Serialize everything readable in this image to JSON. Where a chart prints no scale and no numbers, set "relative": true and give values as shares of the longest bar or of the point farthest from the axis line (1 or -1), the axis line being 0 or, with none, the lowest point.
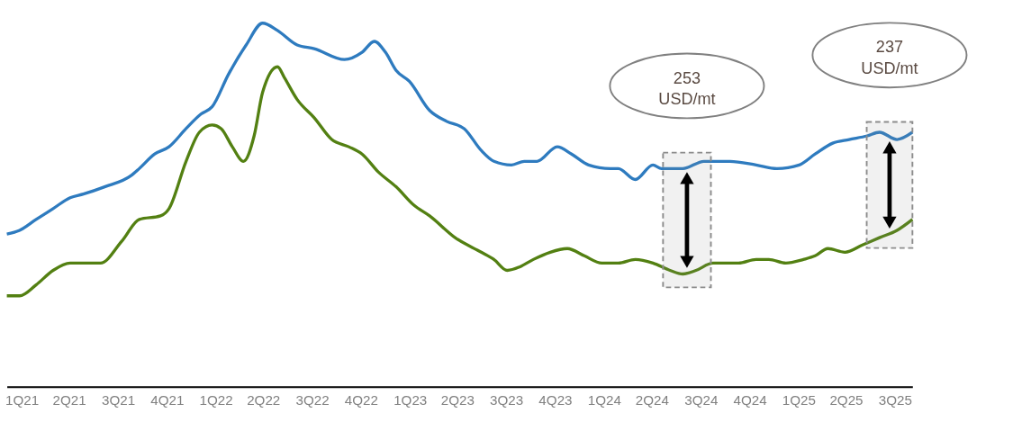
{
  "chart_data": {
    "type": "line",
    "relative": true,
    "line_style": "solid",
    "xlim": [
      "2021-01-18",
      "2025-09-17"
    ],
    "xticks": [
      {
        "value": "2021-02-15",
        "label": "1Q21"
      },
      {
        "value": "2021-05-15",
        "label": "2Q21"
      },
      {
        "value": "2021-08-15",
        "label": "3Q21"
      },
      {
        "value": "2021-11-15",
        "label": "4Q21"
      },
      {
        "value": "2022-02-15",
        "label": "1Q22"
      },
      {
        "value": "2022-05-15",
        "label": "2Q22"
      },
      {
        "value": "2022-08-15",
        "label": "3Q22"
      },
      {
        "value": "2022-11-15",
        "label": "4Q22"
      },
      {
        "value": "2023-02-15",
        "label": "1Q23"
      },
      {
        "value": "2023-05-15",
        "label": "2Q23"
      },
      {
        "value": "2023-08-15",
        "label": "3Q23"
      },
      {
        "value": "2023-11-15",
        "label": "4Q23"
      },
      {
        "value": "2024-02-15",
        "label": "1Q24"
      },
      {
        "value": "2024-05-15",
        "label": "2Q24"
      },
      {
        "value": "2024-08-15",
        "label": "3Q24"
      },
      {
        "value": "2024-11-15",
        "label": "4Q24"
      },
      {
        "value": "2025-02-15",
        "label": "1Q25"
      },
      {
        "value": "2025-05-15",
        "label": "2Q25"
      },
      {
        "value": "2025-08-15",
        "label": "3Q25"
      }
    ],
    "series": [
      {
        "color": "#2e7bbf",
        "x": [
          "2021-01-18",
          "2021-02-11",
          "2021-03-14",
          "2021-04-15",
          "2021-05-17",
          "2021-06-11",
          "2021-07-21",
          "2021-09-08",
          "2021-09-24",
          "2021-10-23",
          "2021-11-19",
          "2021-12-21",
          "2022-01-18",
          "2022-02-08",
          "2022-03-11",
          "2022-04-13",
          "2022-05-14",
          "2022-06-11",
          "2022-07-18",
          "2022-08-19",
          "2022-10-15",
          "2022-11-17",
          "2022-12-10",
          "2022-12-31",
          "2023-01-20",
          "2023-02-14",
          "2023-03-24",
          "2023-04-25",
          "2023-05-28",
          "2023-06-29",
          "2023-07-23",
          "2023-08-25",
          "2023-09-18",
          "2023-10-12",
          "2023-11-19",
          "2023-12-16",
          "2024-01-17",
          "2024-02-27",
          "2024-03-13",
          "2024-04-14",
          "2024-05-17",
          "2024-06-02",
          "2024-06-23",
          "2024-07-12",
          "2024-08-21",
          "2024-10-09",
          "2024-11-27",
          "2025-01-05",
          "2025-02-16",
          "2025-03-18",
          "2025-04-20",
          "2025-05-21",
          "2025-06-24",
          "2025-07-17",
          "2025-08-19",
          "2025-09-17"
        ],
        "values": [
          0.42,
          0.43,
          0.46,
          0.49,
          0.52,
          0.53,
          0.55,
          0.58,
          0.6,
          0.64,
          0.66,
          0.71,
          0.75,
          0.77,
          0.86,
          0.94,
          1.0,
          0.98,
          0.94,
          0.93,
          0.9,
          0.92,
          0.95,
          0.92,
          0.87,
          0.84,
          0.76,
          0.73,
          0.71,
          0.65,
          0.62,
          0.61,
          0.62,
          0.62,
          0.66,
          0.64,
          0.61,
          0.6,
          0.6,
          0.57,
          0.61,
          0.6,
          0.6,
          0.6,
          0.62,
          0.62,
          0.61,
          0.6,
          0.61,
          0.64,
          0.67,
          0.68,
          0.69,
          0.7,
          0.68,
          0.7
        ]
      },
      {
        "color": "#538012",
        "x": [
          "2021-01-18",
          "2021-02-11",
          "2021-03-14",
          "2021-04-15",
          "2021-05-17",
          "2021-06-19",
          "2021-07-13",
          "2021-08-22",
          "2021-09-24",
          "2021-11-03",
          "2021-11-19",
          "2021-12-21",
          "2022-01-15",
          "2022-02-08",
          "2022-02-25",
          "2022-03-18",
          "2022-04-08",
          "2022-04-28",
          "2022-05-14",
          "2022-06-11",
          "2022-06-24",
          "2022-07-18",
          "2022-08-19",
          "2022-09-21",
          "2022-10-23",
          "2022-11-17",
          "2022-12-18",
          "2023-01-20",
          "2023-02-22",
          "2023-03-24",
          "2023-05-11",
          "2023-06-29",
          "2023-07-23",
          "2023-08-17",
          "2023-09-10",
          "2023-10-05",
          "2023-11-06",
          "2023-12-08",
          "2024-01-09",
          "2024-02-11",
          "2024-03-13",
          "2024-04-14",
          "2024-05-17",
          "2024-06-18",
          "2024-07-12",
          "2024-08-06",
          "2024-09-07",
          "2024-10-25",
          "2024-11-27",
          "2024-12-21",
          "2025-01-22",
          "2025-02-24",
          "2025-03-18",
          "2025-04-11",
          "2025-05-13",
          "2025-06-15",
          "2025-07-17",
          "2025-08-19",
          "2025-09-17"
        ],
        "values": [
          0.25,
          0.25,
          0.28,
          0.32,
          0.34,
          0.34,
          0.34,
          0.4,
          0.46,
          0.47,
          0.49,
          0.62,
          0.7,
          0.72,
          0.71,
          0.66,
          0.62,
          0.69,
          0.81,
          0.88,
          0.85,
          0.79,
          0.74,
          0.68,
          0.66,
          0.64,
          0.59,
          0.55,
          0.5,
          0.47,
          0.41,
          0.37,
          0.35,
          0.32,
          0.33,
          0.35,
          0.37,
          0.38,
          0.36,
          0.34,
          0.34,
          0.35,
          0.34,
          0.32,
          0.31,
          0.32,
          0.34,
          0.34,
          0.35,
          0.35,
          0.34,
          0.35,
          0.36,
          0.38,
          0.37,
          0.39,
          0.41,
          0.43,
          0.46
        ]
      }
    ],
    "bands": [
      {
        "axis": "x",
        "from": "2024-06-05",
        "to": "2024-09-03",
        "color": "#8c8c8c"
      },
      {
        "axis": "x",
        "from": "2025-06-23",
        "to": "2025-09-17",
        "color": "#8c8c8c"
      }
    ],
    "annotations": [
      "253\nUSD/mt",
      "237\nUSD/mt"
    ]
  }
}
